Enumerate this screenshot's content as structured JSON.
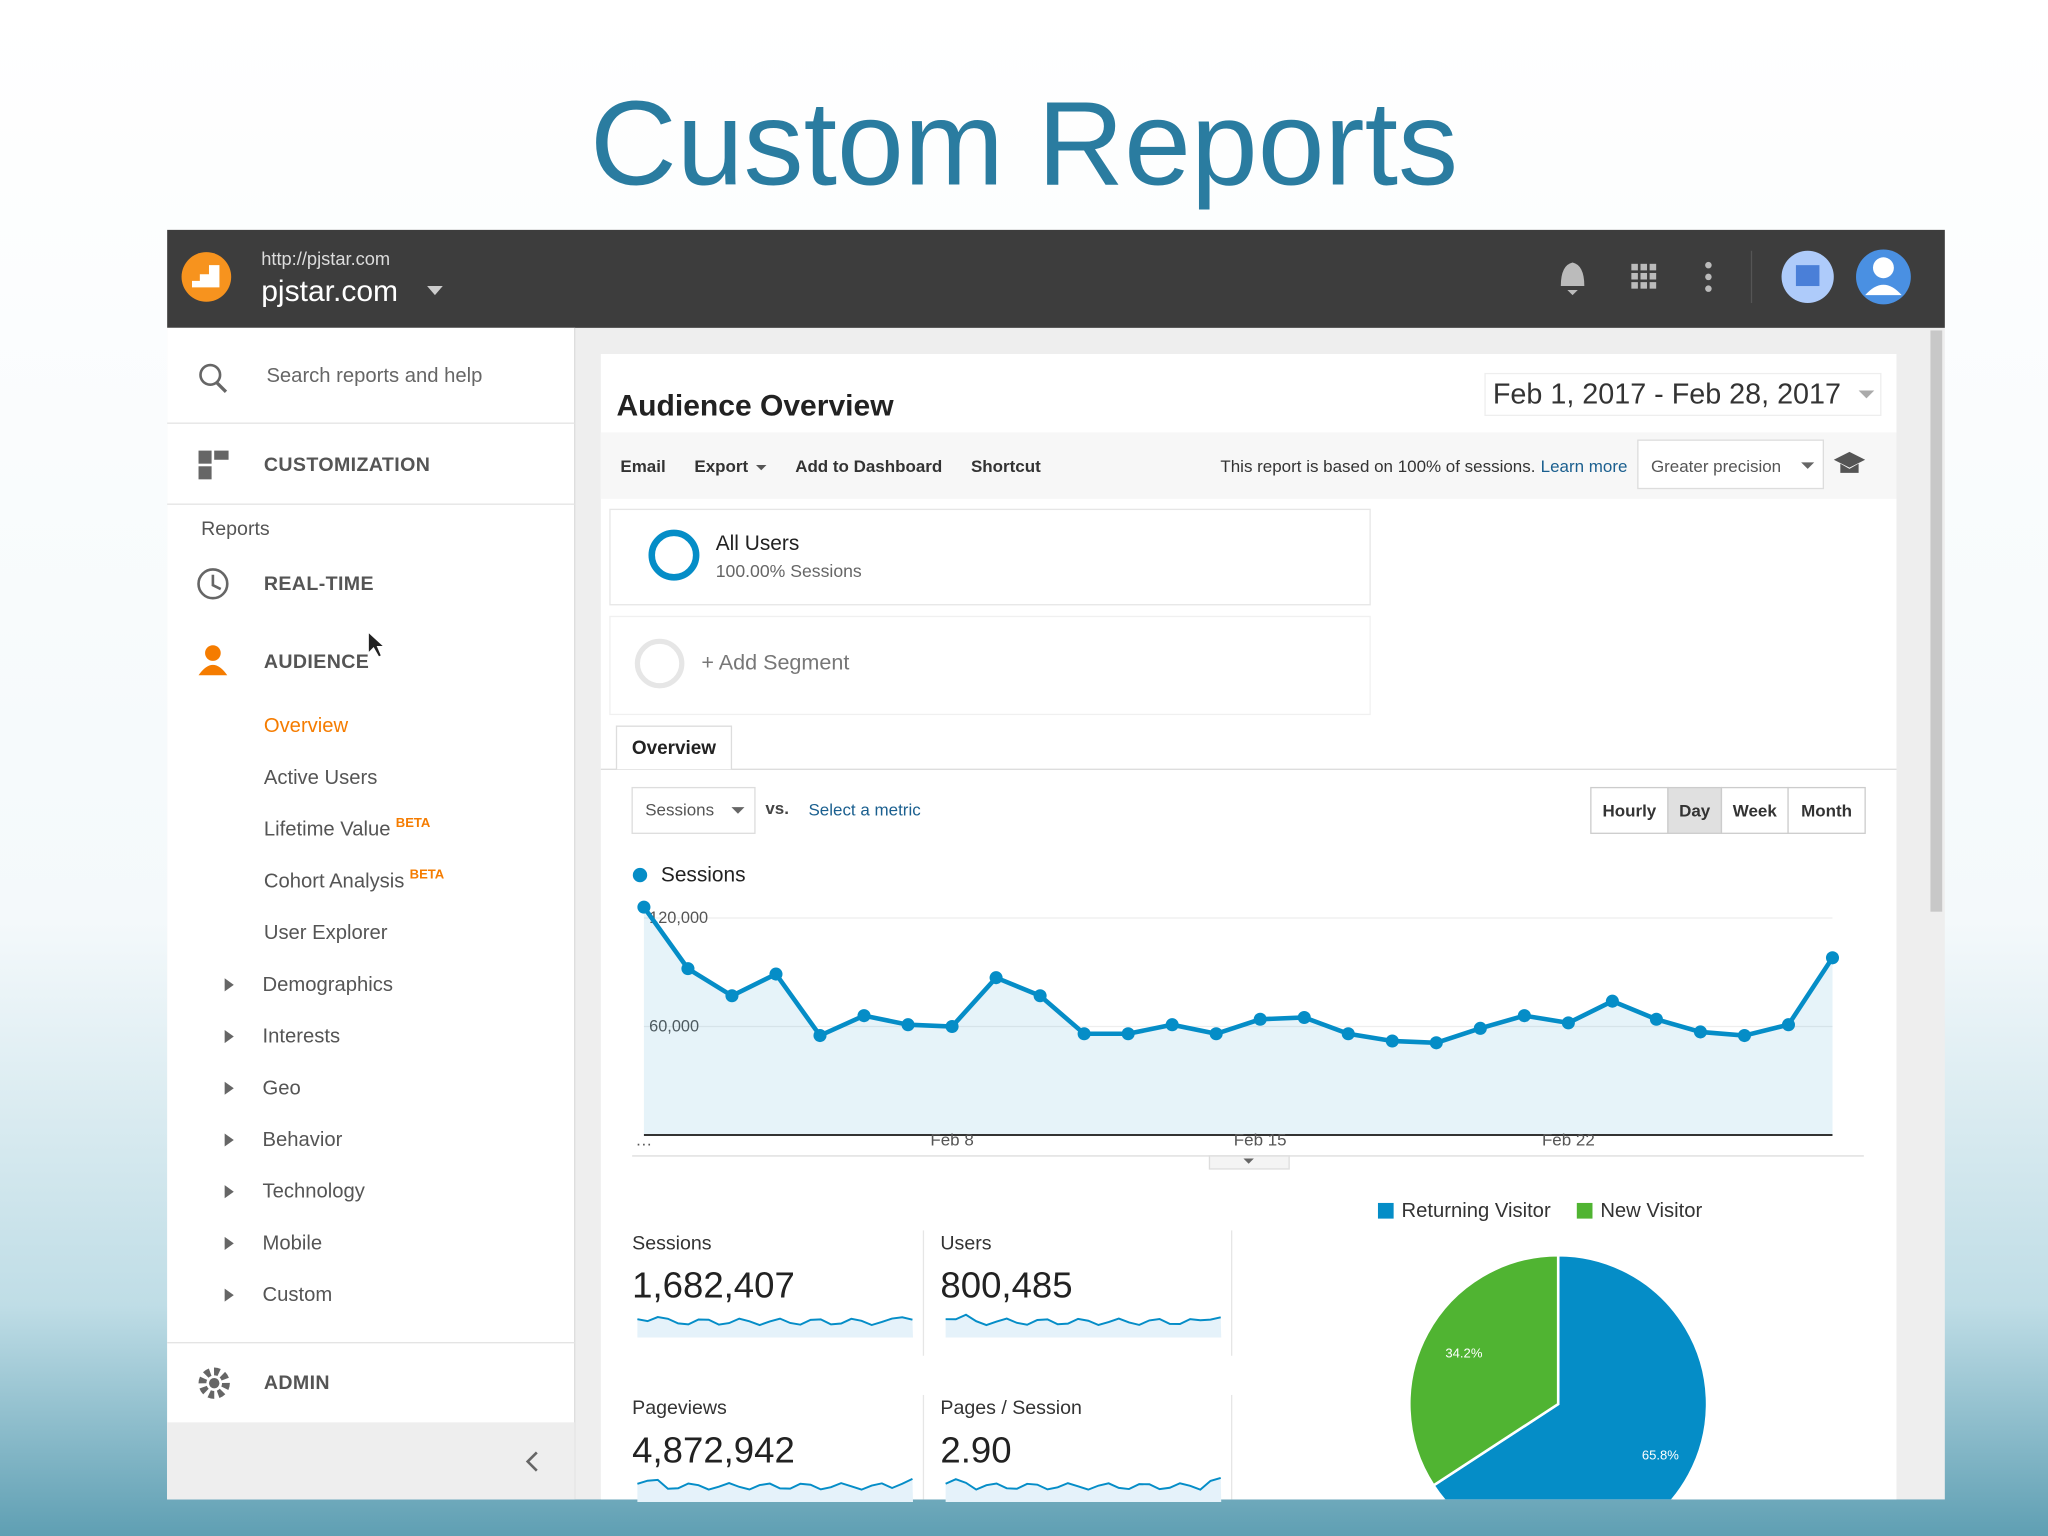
{
  "slide_title": "Custom Reports",
  "header": {
    "url": "http://pjstar.com",
    "site": "pjstar.com"
  },
  "sidebar": {
    "search": "Search reports and help",
    "customization": "CUSTOMIZATION",
    "reports_label": "Reports",
    "realtime": "REAL-TIME",
    "audience": "AUDIENCE",
    "audience_items": [
      {
        "label": "Overview"
      },
      {
        "label": "Active Users"
      },
      {
        "label": "Lifetime Value",
        "badge": "BETA"
      },
      {
        "label": "Cohort Analysis",
        "badge": "BETA"
      },
      {
        "label": "User Explorer"
      }
    ],
    "expandable": [
      "Demographics",
      "Interests",
      "Geo",
      "Behavior",
      "Technology",
      "Mobile",
      "Custom"
    ],
    "admin": "ADMIN"
  },
  "report": {
    "title": "Audience Overview",
    "date_range": "Feb 1, 2017 - Feb 28, 2017",
    "toolbar": [
      "Email",
      "Export",
      "Add to Dashboard",
      "Shortcut"
    ],
    "sampling_note": "This report is based on 100% of sessions.",
    "learn_more": "Learn more",
    "precision": "Greater precision",
    "segment_name": "All Users",
    "segment_detail": "100.00% Sessions",
    "add_segment": "+ Add Segment",
    "tab": "Overview",
    "metric": "Sessions",
    "vs": "vs.",
    "select_metric": "Select a metric",
    "intervals": [
      "Hourly",
      "Day",
      "Week",
      "Month"
    ],
    "active_interval": "Day"
  },
  "chart_data": [
    {
      "type": "line",
      "categories": [
        "…",
        null,
        null,
        null,
        null,
        null,
        null,
        "Feb 8",
        null,
        null,
        null,
        null,
        null,
        null,
        "Feb 15",
        null,
        null,
        null,
        null,
        null,
        null,
        "Feb 22",
        null,
        null,
        null,
        null,
        null,
        null
      ],
      "series": [
        {
          "name": "Sessions",
          "color": "#058dc7",
          "values": [
            126000,
            92000,
            77000,
            89000,
            55000,
            66000,
            61000,
            60000,
            87000,
            77000,
            56000,
            56000,
            61000,
            56000,
            64000,
            65000,
            56000,
            52000,
            51000,
            59000,
            66000,
            62000,
            74000,
            64000,
            57000,
            55000,
            61000,
            98000
          ]
        }
      ],
      "ylim": [
        0,
        130000
      ],
      "yticks": [
        {
          "value": 60000,
          "label": "60,000"
        },
        {
          "value": 120000,
          "label": "120,000"
        }
      ],
      "grid": true
    },
    {
      "type": "pie",
      "categories": [
        "Returning Visitor",
        "New Visitor"
      ],
      "values": [
        65.8,
        34.2
      ],
      "value_labels": [
        "65.8%",
        "34.2%"
      ],
      "colors": [
        "#058dc7",
        "#50b432"
      ],
      "legend": "top"
    }
  ],
  "metrics": [
    {
      "label": "Sessions",
      "value": "1,682,407"
    },
    {
      "label": "Users",
      "value": "800,485"
    },
    {
      "label": "Pageviews",
      "value": "4,872,942"
    },
    {
      "label": "Pages / Session",
      "value": "2.90"
    }
  ]
}
